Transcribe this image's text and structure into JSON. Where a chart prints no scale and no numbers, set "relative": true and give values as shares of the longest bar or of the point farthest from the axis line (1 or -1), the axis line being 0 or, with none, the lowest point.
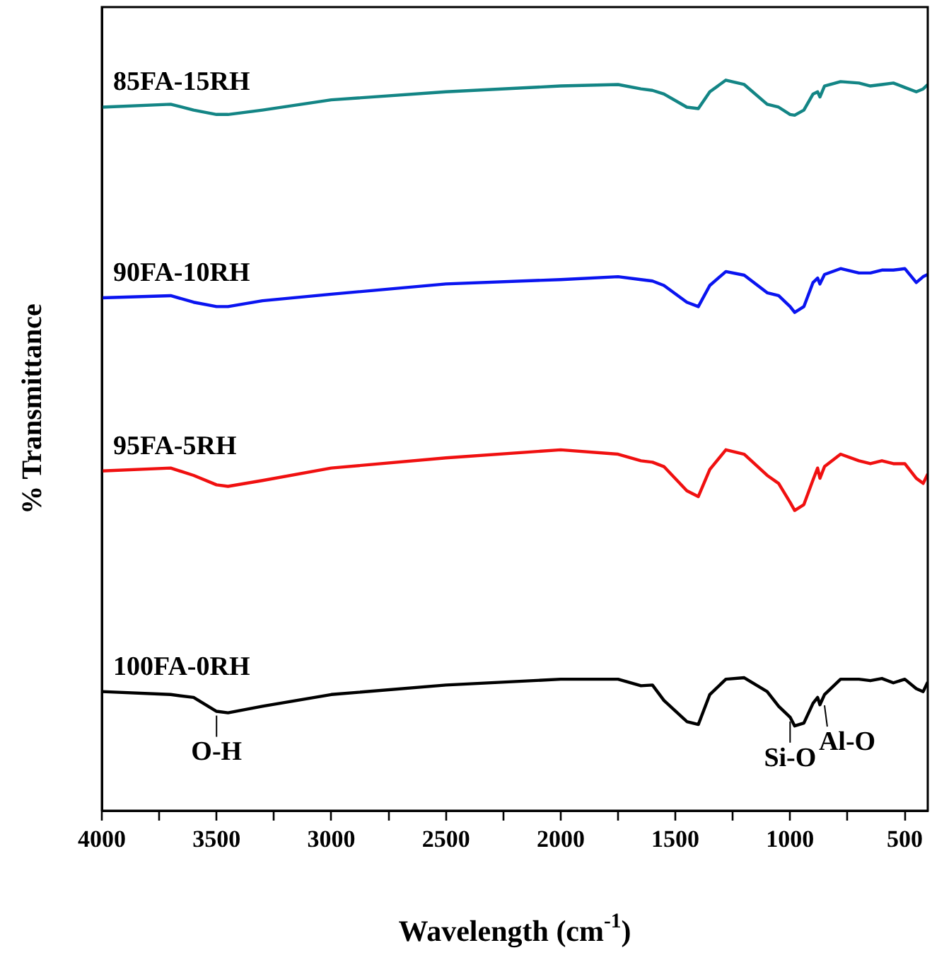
{
  "chart_data": {
    "type": "line",
    "relative": true,
    "xlabel": "Wavelength (cm$^{-1}$)",
    "ylabel": "% Transmittance",
    "x": [
      4000,
      3700,
      3600,
      3500,
      3450,
      3300,
      3000,
      2500,
      2000,
      1750,
      1650,
      1600,
      1550,
      1450,
      1400,
      1350,
      1280,
      1200,
      1100,
      1050,
      1000,
      980,
      940,
      900,
      880,
      870,
      850,
      780,
      700,
      650,
      600,
      550,
      500,
      450,
      420,
      400
    ],
    "xlim": [
      4000,
      400
    ],
    "xticks": [
      4000,
      {
        "value": 3750,
        "label": null
      },
      3500,
      {
        "value": 3250,
        "label": null
      },
      3000,
      {
        "value": 2750,
        "label": null
      },
      2500,
      {
        "value": 2250,
        "label": null
      },
      2000,
      {
        "value": 1750,
        "label": null
      },
      1500,
      {
        "value": 1250,
        "label": null
      },
      1000,
      {
        "value": 750,
        "label": null
      },
      500
    ],
    "series": [
      {
        "name": "85FA-15RH",
        "color": "#138585",
        "values": [
          0.963,
          0.967,
          0.959,
          0.953,
          0.953,
          0.959,
          0.973,
          0.984,
          0.992,
          0.994,
          0.988,
          0.986,
          0.981,
          0.963,
          0.961,
          0.984,
          1,
          0.994,
          0.967,
          0.963,
          0.953,
          0.952,
          0.959,
          0.981,
          0.984,
          0.977,
          0.992,
          0.998,
          0.996,
          0.992,
          0.994,
          0.996,
          0.99,
          0.984,
          0.988,
          0.994
        ]
      },
      {
        "name": "90FA-10RH",
        "color": "#0a14f0",
        "values": [
          0.702,
          0.705,
          0.696,
          0.69,
          0.69,
          0.698,
          0.707,
          0.721,
          0.727,
          0.731,
          0.727,
          0.725,
          0.719,
          0.696,
          0.69,
          0.719,
          0.738,
          0.733,
          0.709,
          0.705,
          0.69,
          0.682,
          0.69,
          0.723,
          0.729,
          0.721,
          0.734,
          0.742,
          0.736,
          0.736,
          0.74,
          0.74,
          0.742,
          0.723,
          0.731,
          0.734
        ]
      },
      {
        "name": "95FA-5RH",
        "color": "#f01010",
        "values": [
          0.465,
          0.469,
          0.459,
          0.446,
          0.444,
          0.452,
          0.469,
          0.483,
          0.494,
          0.488,
          0.479,
          0.477,
          0.471,
          0.438,
          0.43,
          0.467,
          0.494,
          0.488,
          0.459,
          0.448,
          0.422,
          0.411,
          0.419,
          0.453,
          0.469,
          0.455,
          0.471,
          0.488,
          0.479,
          0.475,
          0.479,
          0.475,
          0.475,
          0.455,
          0.448,
          0.461
        ]
      },
      {
        "name": "100FA-0RH",
        "color": "#000000",
        "values": [
          0.163,
          0.159,
          0.155,
          0.136,
          0.134,
          0.143,
          0.159,
          0.172,
          0.18,
          0.18,
          0.171,
          0.172,
          0.151,
          0.122,
          0.118,
          0.159,
          0.18,
          0.182,
          0.163,
          0.143,
          0.128,
          0.116,
          0.12,
          0.147,
          0.155,
          0.145,
          0.159,
          0.18,
          0.18,
          0.178,
          0.181,
          0.175,
          0.18,
          0.167,
          0.163,
          0.176
        ]
      }
    ],
    "annotations": [
      {
        "text": "O-H",
        "x": 3500,
        "y": 0.136
      },
      {
        "text": "Si-O",
        "x": 1000,
        "y": 0.128
      },
      {
        "text": "Al-O",
        "x": 850,
        "y": 0.15
      }
    ],
    "legend": false,
    "grid": false,
    "marker": "none",
    "line_style": "solid",
    "tick_labels": "x"
  }
}
